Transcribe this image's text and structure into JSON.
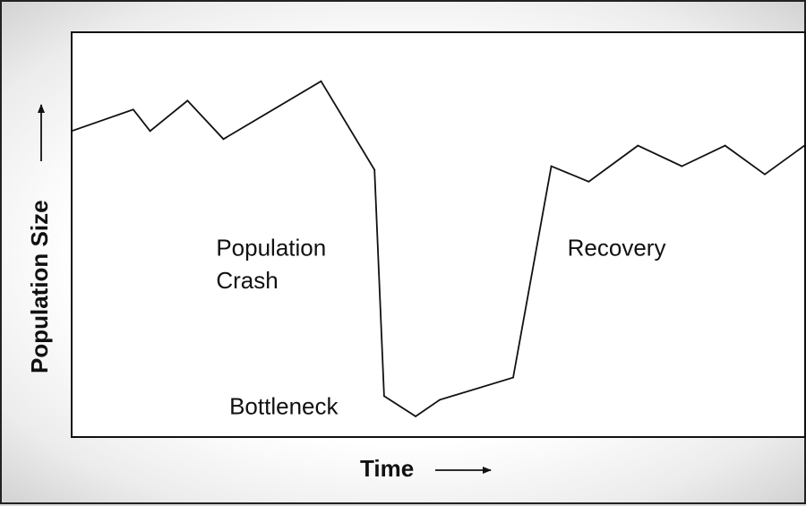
{
  "chart_data": {
    "type": "line",
    "title": "",
    "xlabel": "Time",
    "ylabel": "Population Size",
    "xlim": [
      0,
      100
    ],
    "ylim": [
      0,
      100
    ],
    "grid": false,
    "legend": "none",
    "ticks": "none",
    "line_color": "#111111",
    "series": [
      {
        "x": [
          0,
          8.4,
          10.7,
          15.8,
          20.7,
          34.0,
          41.3,
          42.6,
          46.9,
          50.2,
          60.2,
          65.4,
          70.5,
          77.2,
          83.2,
          89.1,
          94.5,
          99.9
        ],
        "y": [
          75.6,
          80.9,
          75.6,
          83.1,
          73.6,
          87.9,
          66.0,
          10.1,
          5.1,
          9.2,
          14.7,
          66.9,
          63.1,
          72.0,
          66.9,
          72.0,
          64.9,
          72.0
        ]
      }
    ],
    "annotations": [
      {
        "text": "Population",
        "x": 19.7,
        "y": 44.8
      },
      {
        "text": "Crash",
        "x": 19.7,
        "y": 36.7
      },
      {
        "text": "Bottleneck",
        "x": 21.5,
        "y": 5.6
      },
      {
        "text": "Recovery",
        "x": 67.6,
        "y": 44.8
      }
    ]
  }
}
